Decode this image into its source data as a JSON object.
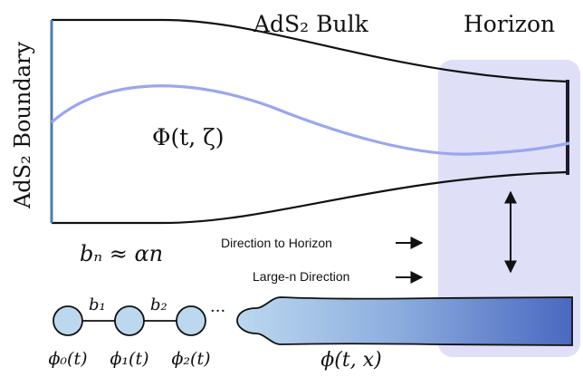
{
  "labels": {
    "bulk": "AdS₂ Bulk",
    "horizon": "Horizon",
    "boundary": "AdS₂ Boundary",
    "field_bulk": "Φ(t, ζ)",
    "coeff_relation": "bₙ ≈ αn",
    "direction_horizon": "Direction to Horizon",
    "direction_large_n": "Large-n Direction",
    "field_continuum": "ϕ(t, x)",
    "ellipsis": "···"
  },
  "chain": {
    "sites": [
      "ϕ₀(t)",
      "ϕ₁(t)",
      "ϕ₂(t)"
    ],
    "links": [
      "b₁",
      "b₂"
    ]
  },
  "colors": {
    "horizon_region": "#d9d9f7",
    "wave": "#9aa6ee",
    "boundary_line": "#4e7fa6",
    "node_fill": "#bcd8ef",
    "tube_end": "#4a68c0",
    "ink": "#111111"
  },
  "icons": {
    "horizon_link": "double-arrow-icon",
    "direction_arrow": "right-arrow-icon"
  }
}
